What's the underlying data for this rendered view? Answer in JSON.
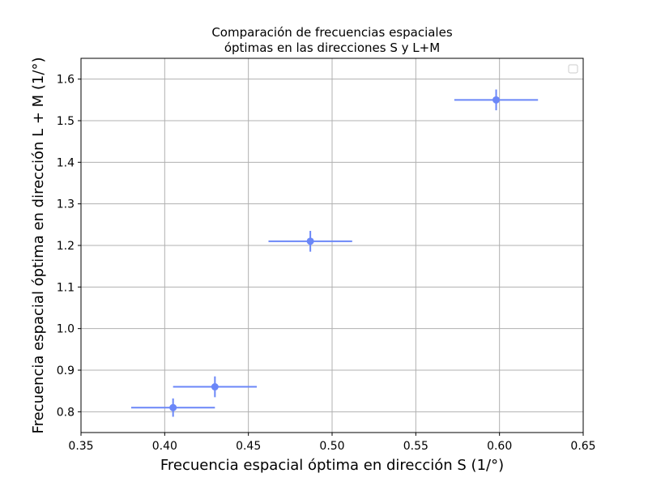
{
  "chart_data": {
    "type": "scatter",
    "title_lines": [
      "Comparación de frecuencias espaciales",
      "óptimas en las direcciones S y L+M"
    ],
    "xlabel": "Frecuencia espacial óptima en dirección S (1/°)",
    "ylabel": "Frecuencia espacial óptima en dirección L + M (1/°)",
    "xlim": [
      0.35,
      0.65
    ],
    "ylim": [
      0.75,
      1.65
    ],
    "xticks": [
      "0.35",
      "0.40",
      "0.45",
      "0.50",
      "0.55",
      "0.60",
      "0.65"
    ],
    "yticks": [
      "0.8",
      "0.9",
      "1.0",
      "1.1",
      "1.2",
      "1.3",
      "1.4",
      "1.5",
      "1.6"
    ],
    "grid": true,
    "legend": {
      "placement": "top-right",
      "entries": []
    },
    "series": [
      {
        "color": "#6b87f8",
        "points": [
          {
            "x": 0.405,
            "y": 0.81,
            "xerr": 0.025,
            "yerr": 0.022
          },
          {
            "x": 0.43,
            "y": 0.86,
            "xerr": 0.025,
            "yerr": 0.025
          },
          {
            "x": 0.487,
            "y": 1.21,
            "xerr": 0.025,
            "yerr": 0.025
          },
          {
            "x": 0.598,
            "y": 1.55,
            "xerr": 0.025,
            "yerr": 0.025
          }
        ]
      }
    ]
  }
}
